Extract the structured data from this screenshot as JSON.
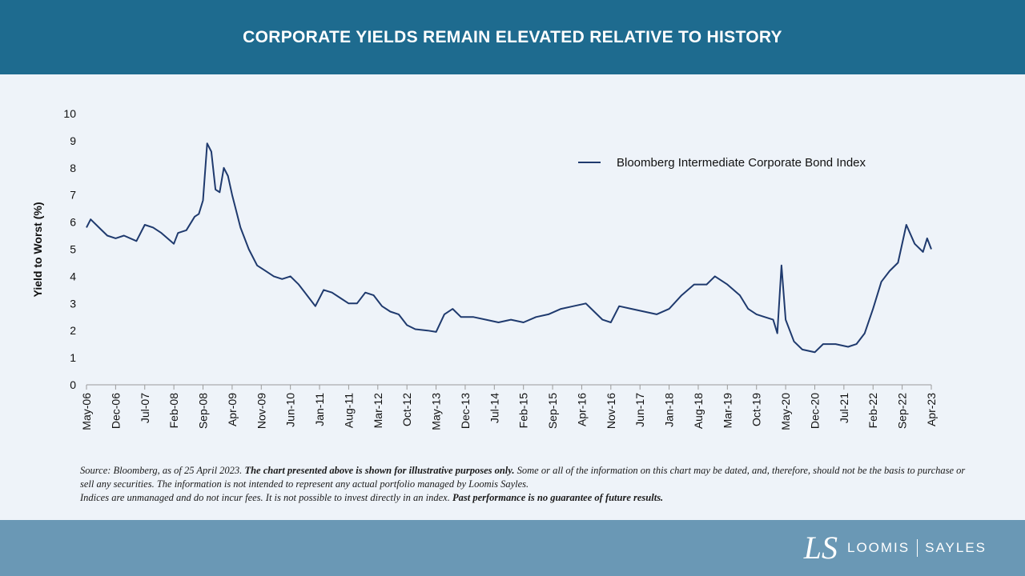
{
  "header": {
    "title": "CORPORATE YIELDS REMAIN ELEVATED RELATIVE TO HISTORY"
  },
  "colors": {
    "header_bg": "#1e6b8f",
    "footer_bg": "#6a98b5",
    "line": "#1f3a6e",
    "background": "#eef3f9"
  },
  "chart_data": {
    "type": "line",
    "title": "",
    "xlabel": "",
    "ylabel": "Yield to Worst (%)",
    "ylim": [
      0,
      10
    ],
    "yticks": [
      0,
      1,
      2,
      3,
      4,
      5,
      6,
      7,
      8,
      9,
      10
    ],
    "x_tick_labels": [
      "May-06",
      "Dec-06",
      "Jul-07",
      "Feb-08",
      "Sep-08",
      "Apr-09",
      "Nov-09",
      "Jun-10",
      "Jan-11",
      "Aug-11",
      "Mar-12",
      "Oct-12",
      "May-13",
      "Dec-13",
      "Jul-14",
      "Feb-15",
      "Sep-15",
      "Apr-16",
      "Nov-16",
      "Jun-17",
      "Jan-18",
      "Aug-18",
      "Mar-19",
      "Oct-19",
      "May-20",
      "Dec-20",
      "Jul-21",
      "Feb-22",
      "Sep-22",
      "Apr-23"
    ],
    "legend": {
      "position": "top-right"
    },
    "series": [
      {
        "name": "Bloomberg Intermediate Corporate Bond Index",
        "x": [
          "2006-05",
          "2006-06",
          "2006-08",
          "2006-10",
          "2006-12",
          "2007-02",
          "2007-05",
          "2007-07",
          "2007-09",
          "2007-11",
          "2008-02",
          "2008-03",
          "2008-05",
          "2008-07",
          "2008-08",
          "2008-09",
          "2008-10",
          "2008-11",
          "2008-12",
          "2009-01",
          "2009-02",
          "2009-03",
          "2009-04",
          "2009-05",
          "2009-06",
          "2009-08",
          "2009-10",
          "2009-12",
          "2010-02",
          "2010-04",
          "2010-06",
          "2010-08",
          "2010-10",
          "2010-12",
          "2011-02",
          "2011-04",
          "2011-06",
          "2011-08",
          "2011-10",
          "2011-12",
          "2012-02",
          "2012-04",
          "2012-06",
          "2012-08",
          "2012-10",
          "2012-12",
          "2013-03",
          "2013-05",
          "2013-07",
          "2013-09",
          "2013-11",
          "2014-02",
          "2014-05",
          "2014-08",
          "2014-11",
          "2015-02",
          "2015-05",
          "2015-08",
          "2015-11",
          "2016-02",
          "2016-05",
          "2016-07",
          "2016-09",
          "2016-11",
          "2017-01",
          "2017-04",
          "2017-07",
          "2017-10",
          "2018-01",
          "2018-04",
          "2018-07",
          "2018-10",
          "2018-12",
          "2019-03",
          "2019-06",
          "2019-08",
          "2019-10",
          "2019-12",
          "2020-02",
          "2020-03",
          "2020-04",
          "2020-05",
          "2020-07",
          "2020-09",
          "2020-12",
          "2021-02",
          "2021-05",
          "2021-08",
          "2021-10",
          "2021-12",
          "2022-02",
          "2022-04",
          "2022-06",
          "2022-08",
          "2022-10",
          "2022-12",
          "2023-02",
          "2023-03",
          "2023-04"
        ],
        "values": [
          5.8,
          6.1,
          5.8,
          5.5,
          5.4,
          5.5,
          5.3,
          5.9,
          5.8,
          5.6,
          5.2,
          5.6,
          5.7,
          6.2,
          6.3,
          6.8,
          8.9,
          8.6,
          7.2,
          7.1,
          8.0,
          7.7,
          7.0,
          6.4,
          5.8,
          5.0,
          4.4,
          4.2,
          4.0,
          3.9,
          4.0,
          3.7,
          3.3,
          2.9,
          3.5,
          3.4,
          3.2,
          3.0,
          3.0,
          3.4,
          3.3,
          2.9,
          2.7,
          2.6,
          2.2,
          2.05,
          2.0,
          1.95,
          2.6,
          2.8,
          2.5,
          2.5,
          2.4,
          2.3,
          2.4,
          2.3,
          2.5,
          2.6,
          2.8,
          2.9,
          3.0,
          2.7,
          2.4,
          2.3,
          2.9,
          2.8,
          2.7,
          2.6,
          2.8,
          3.3,
          3.7,
          3.7,
          4.0,
          3.7,
          3.3,
          2.8,
          2.6,
          2.5,
          2.4,
          1.9,
          4.4,
          2.4,
          1.6,
          1.3,
          1.2,
          1.5,
          1.5,
          1.4,
          1.5,
          1.9,
          2.8,
          3.8,
          4.2,
          4.5,
          5.9,
          5.2,
          4.9,
          5.4,
          5.0
        ]
      }
    ]
  },
  "footnote": {
    "part1": "Source: Bloomberg, as of 25 April 2023. ",
    "bold1": "The chart presented above is shown for illustrative purposes only.",
    "part2": " Some or all of the information on this chart may be dated, and, therefore, should not be the basis to purchase or sell any securities. The information is not intended to represent any actual portfolio managed by Loomis Sayles.",
    "part3": "Indices are unmanaged and do not incur fees. It is not possible to invest directly in an index. ",
    "bold2": "Past performance is no guarantee of future results."
  },
  "footer": {
    "logo_mark": "LS",
    "logo_left": "LOOMIS",
    "logo_right": "SAYLES"
  }
}
